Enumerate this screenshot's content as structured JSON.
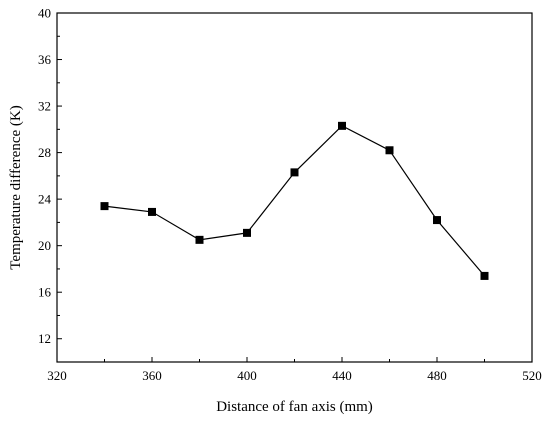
{
  "chart_data": {
    "type": "line",
    "title": "",
    "xlabel": "Distance of fan axis (mm)",
    "ylabel": "Temperature difference (K)",
    "xlim": [
      320,
      520
    ],
    "ylim": [
      10,
      40
    ],
    "xticks": [
      320,
      360,
      400,
      440,
      480,
      520
    ],
    "yticks": [
      12,
      16,
      20,
      24,
      28,
      32,
      36,
      40
    ],
    "grid": false,
    "legend": "none",
    "series": [
      {
        "x": [
          340,
          360,
          380,
          400,
          420,
          440,
          460,
          480,
          500
        ],
        "y": [
          23.4,
          22.9,
          20.5,
          21.1,
          26.3,
          30.3,
          28.2,
          22.2,
          17.4
        ],
        "marker": "square",
        "color": "#000000"
      }
    ]
  }
}
